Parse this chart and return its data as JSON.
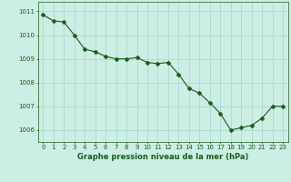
{
  "x": [
    0,
    1,
    2,
    3,
    4,
    5,
    6,
    7,
    8,
    9,
    10,
    11,
    12,
    13,
    14,
    15,
    16,
    17,
    18,
    19,
    20,
    21,
    22,
    23
  ],
  "y": [
    1010.85,
    1010.6,
    1010.55,
    1010.0,
    1009.4,
    1009.3,
    1009.1,
    1009.0,
    1009.0,
    1009.05,
    1008.85,
    1008.8,
    1008.85,
    1008.35,
    1007.75,
    1007.55,
    1007.15,
    1006.7,
    1006.0,
    1006.1,
    1006.2,
    1006.5,
    1007.0,
    1007.0
  ],
  "line_color": "#1a5c1a",
  "marker_color": "#1a5c1a",
  "background_color": "#cceee4",
  "grid_color": "#aad4c8",
  "tick_color": "#1a5c1a",
  "label_color": "#1a5c1a",
  "xlabel": "Graphe pression niveau de la mer (hPa)",
  "yticks": [
    1006,
    1007,
    1008,
    1009,
    1010,
    1011
  ],
  "xticks": [
    0,
    1,
    2,
    3,
    4,
    5,
    6,
    7,
    8,
    9,
    10,
    11,
    12,
    13,
    14,
    15,
    16,
    17,
    18,
    19,
    20,
    21,
    22,
    23
  ],
  "ylim": [
    1005.5,
    1011.4
  ],
  "xlim": [
    -0.5,
    23.5
  ],
  "line_width": 0.8,
  "marker_size": 2.5,
  "marker": "D",
  "tick_fontsize": 5.0,
  "label_fontsize": 6.0
}
